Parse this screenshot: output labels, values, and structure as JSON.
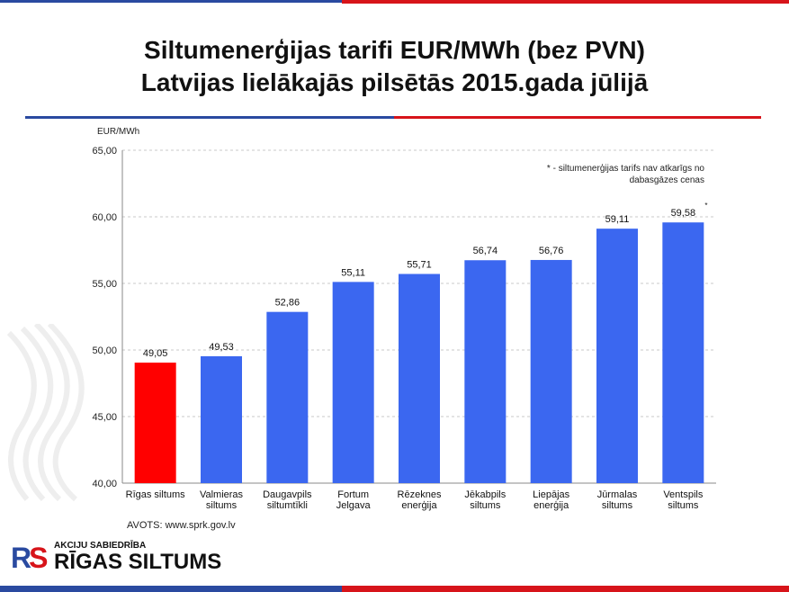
{
  "title": {
    "line1": "Siltumenerģijas tarifi EUR/MWh (bez PVN)",
    "line2": "Latvijas lielākajās pilsētās 2015.gada jūlijā"
  },
  "colors": {
    "highlight": "#ff0000",
    "bar": "#3b67f0",
    "grid": "#c8c8c8",
    "accent_blue": "#2a4aa0",
    "accent_red": "#d7141a"
  },
  "chart_data": {
    "type": "bar",
    "title": "",
    "ylabel": "EUR/MWh",
    "xlabel": "",
    "ylim": [
      40,
      65
    ],
    "yticks": [
      "40,00",
      "45,00",
      "50,00",
      "55,00",
      "60,00",
      "65,00"
    ],
    "ytick_values": [
      40,
      45,
      50,
      55,
      60,
      65
    ],
    "grid": true,
    "categories": [
      [
        "Rīgas siltums"
      ],
      [
        "Valmieras",
        "siltums"
      ],
      [
        "Daugavpils",
        "siltumtīkli"
      ],
      [
        "Fortum",
        "Jelgava"
      ],
      [
        "Rēzeknes",
        "enerģija"
      ],
      [
        "Jēkabpils",
        "siltums"
      ],
      [
        "Liepājas",
        "enerģija"
      ],
      [
        "Jūrmalas",
        "siltums"
      ],
      [
        "Ventspils",
        "siltums"
      ]
    ],
    "values": [
      49.05,
      49.53,
      52.86,
      55.11,
      55.71,
      56.74,
      56.76,
      59.11,
      59.58
    ],
    "value_labels": [
      "49,05",
      "49,53",
      "52,86",
      "55,11",
      "55,71",
      "56,74",
      "56,76",
      "59,11",
      "59,58"
    ],
    "highlight_index": 0,
    "asterisk_index": 8,
    "asterisk": "*",
    "note": [
      "* - siltumenerģijas tarifs nav atkarīgs no",
      "dabasgāzes cenas"
    ]
  },
  "source": "AVOTS: www.sprk.gov.lv",
  "logo": {
    "mark_r": "R",
    "mark_s": "S",
    "small": "AKCIJU SABIEDRĪBA",
    "big": "RĪGAS SILTUMS"
  }
}
